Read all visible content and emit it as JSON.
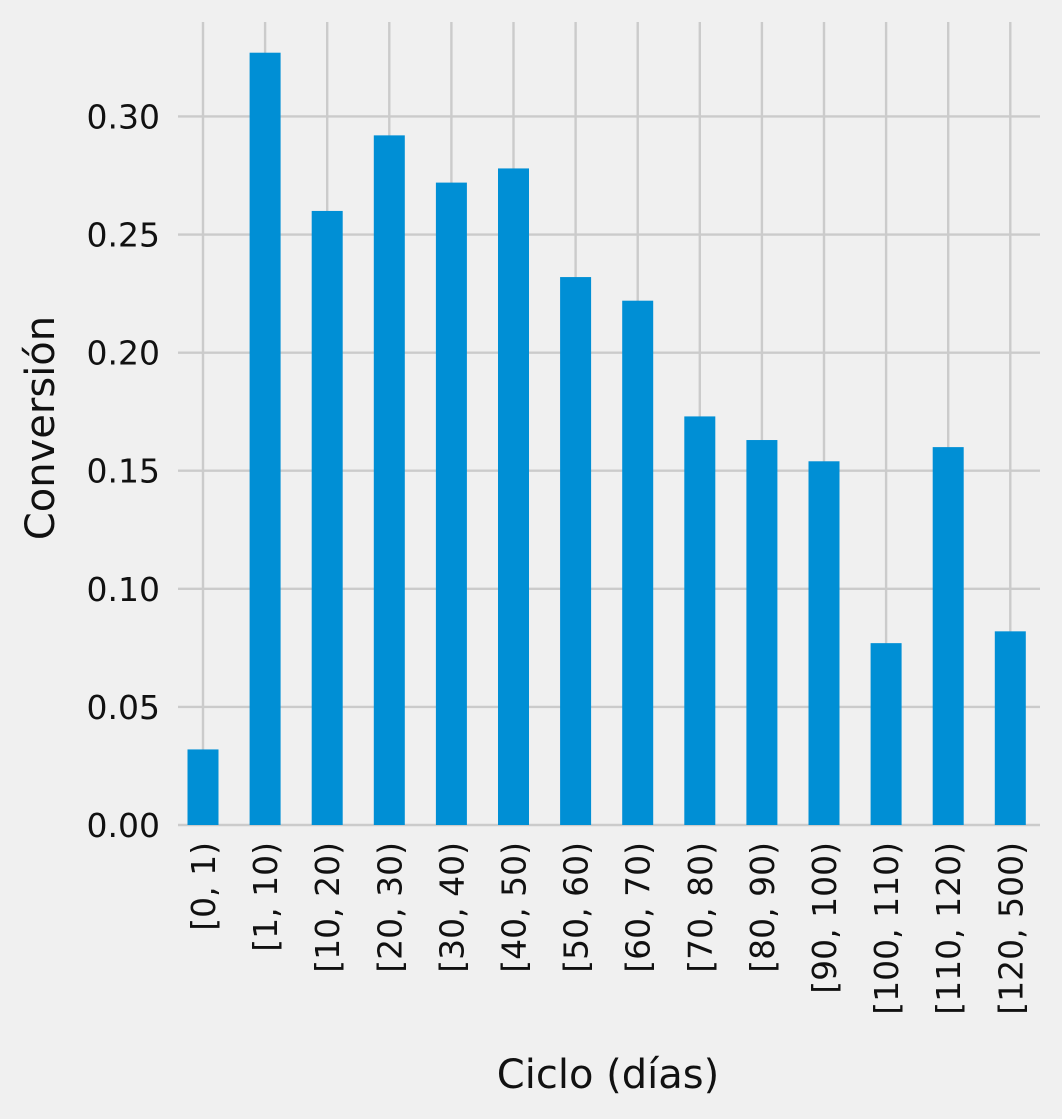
{
  "chart_data": {
    "type": "bar",
    "title": "",
    "xlabel": "Ciclo (días)",
    "ylabel": "Conversión",
    "categories": [
      "[0, 1)",
      "[1, 10)",
      "[10, 20)",
      "[20, 30)",
      "[30, 40)",
      "[40, 50)",
      "[50, 60)",
      "[60, 70)",
      "[70, 80)",
      "[80, 90)",
      "[90, 100)",
      "[100, 110)",
      "[110, 120)",
      "[120, 500)"
    ],
    "values": [
      0.032,
      0.327,
      0.26,
      0.292,
      0.272,
      0.278,
      0.232,
      0.222,
      0.173,
      0.163,
      0.154,
      0.077,
      0.16,
      0.082
    ],
    "ylim": [
      0,
      0.34
    ],
    "yticks": [
      "0.00",
      "0.05",
      "0.10",
      "0.15",
      "0.20",
      "0.25",
      "0.30"
    ],
    "grid": true,
    "bar_color": "#008fd5",
    "background_color": "#f0f0f0",
    "grid_color": "#cbcbcb"
  }
}
